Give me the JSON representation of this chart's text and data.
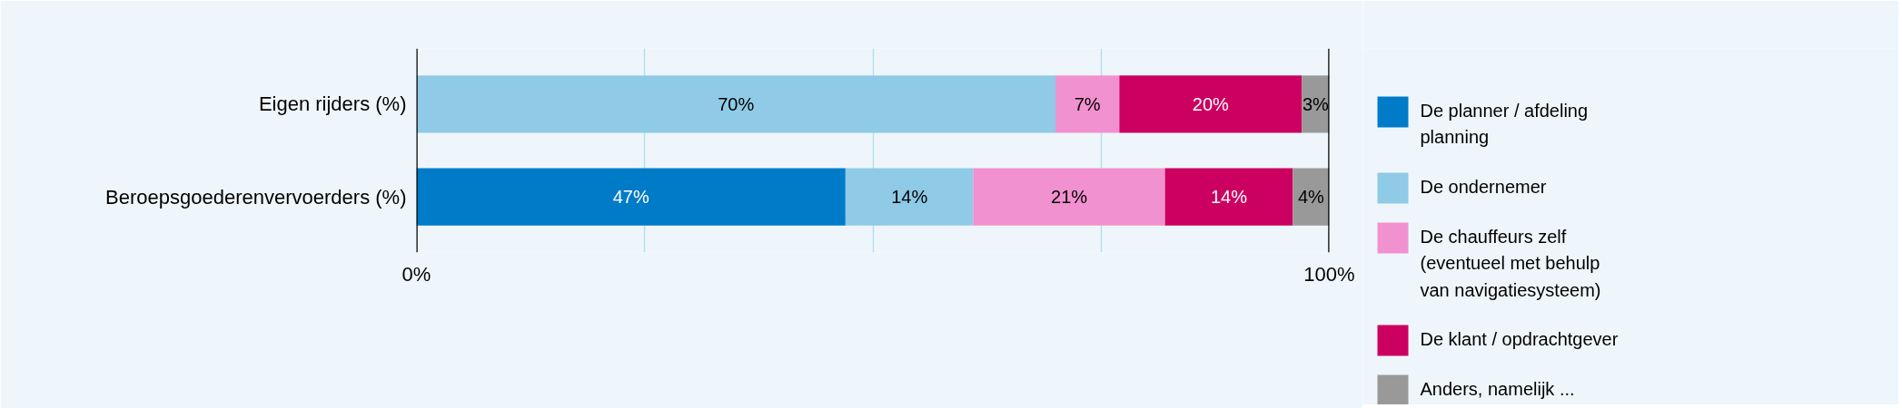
{
  "chart_data": {
    "type": "bar",
    "orientation": "horizontal",
    "stacked": true,
    "categories": [
      "Eigen rijders (%)",
      "Beroepsgoederenvervoerders (%)"
    ],
    "series": [
      {
        "name": "De planner / afdeling planning",
        "color": "#007bc7",
        "values": [
          null,
          47
        ],
        "value_labels": [
          null,
          "47%"
        ]
      },
      {
        "name": "De ondernemer",
        "color": "#8fcae6",
        "values": [
          70,
          14
        ],
        "value_labels": [
          "70%",
          "14%"
        ]
      },
      {
        "name": "De chauffeurs zelf (eventueel met behulp van navigatiesysteem)",
        "color": "#f291cf",
        "values": [
          7,
          21
        ],
        "value_labels": [
          "7%",
          "21%"
        ]
      },
      {
        "name": "De klant / opdrachtgever",
        "color": "#cc0060",
        "values": [
          20,
          14
        ],
        "value_labels": [
          "20%",
          "14%"
        ]
      },
      {
        "name": "Anders, namelijk ...",
        "color": "#999999",
        "values": [
          3,
          4
        ],
        "value_labels": [
          "3%",
          "4%"
        ]
      }
    ],
    "xlim": [
      0,
      100
    ],
    "xticks": [
      {
        "value": 0,
        "label": "0%"
      },
      {
        "value": 25,
        "label": null
      },
      {
        "value": 50,
        "label": null
      },
      {
        "value": 75,
        "label": null
      },
      {
        "value": 100,
        "label": "100%"
      }
    ],
    "grid": "x",
    "legend": "right",
    "data_labels": true
  }
}
